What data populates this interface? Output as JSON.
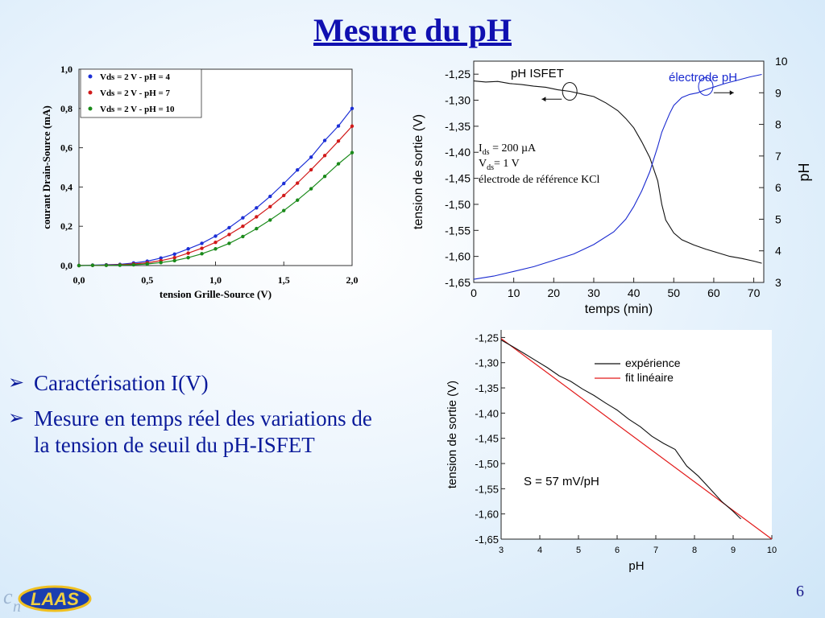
{
  "slide": {
    "title": "Mesure du pH",
    "bullets": [
      "Caractérisation I(V)",
      "Mesure en temps réel des variations de la tension de seuil du pH-ISFET"
    ],
    "page_number": "6",
    "logo_text": "LAAS"
  },
  "chart_data": [
    {
      "id": "iv",
      "type": "scatter+line",
      "title": "",
      "xlabel": "tension Grille-Source (V)",
      "ylabel": "courant Drain-Source (mA)",
      "xlim": [
        0,
        2
      ],
      "ylim": [
        0,
        1
      ],
      "xticks": [
        "0,0",
        "0,5",
        "1,0",
        "1,5",
        "2,0"
      ],
      "yticks": [
        "0,0",
        "0,2",
        "0,4",
        "0,6",
        "0,8",
        "1,0"
      ],
      "legend_position": "top-left",
      "series": [
        {
          "name": "Vds = 2 V - pH = 4",
          "color": "#1c2fd6",
          "x": [
            0.0,
            0.1,
            0.2,
            0.3,
            0.4,
            0.5,
            0.6,
            0.7,
            0.8,
            0.9,
            1.0,
            1.1,
            1.2,
            1.3,
            1.4,
            1.5,
            1.6,
            1.7,
            1.8,
            1.9,
            2.0
          ],
          "y": [
            0.0,
            0.002,
            0.004,
            0.006,
            0.013,
            0.022,
            0.038,
            0.058,
            0.085,
            0.113,
            0.15,
            0.193,
            0.243,
            0.294,
            0.352,
            0.418,
            0.487,
            0.552,
            0.637,
            0.711,
            0.8
          ]
        },
        {
          "name": "Vds = 2 V - pH = 7",
          "color": "#d11a1a",
          "x": [
            0.0,
            0.1,
            0.2,
            0.3,
            0.4,
            0.5,
            0.6,
            0.7,
            0.8,
            0.9,
            1.0,
            1.1,
            1.2,
            1.3,
            1.4,
            1.5,
            1.6,
            1.7,
            1.8,
            1.9,
            2.0
          ],
          "y": [
            0.0,
            0.001,
            0.002,
            0.004,
            0.008,
            0.014,
            0.025,
            0.04,
            0.063,
            0.088,
            0.118,
            0.158,
            0.2,
            0.248,
            0.3,
            0.357,
            0.42,
            0.488,
            0.56,
            0.634,
            0.71
          ]
        },
        {
          "name": "Vds = 2 V - pH = 10",
          "color": "#1a8a1a",
          "x": [
            0.0,
            0.1,
            0.2,
            0.3,
            0.4,
            0.5,
            0.6,
            0.7,
            0.8,
            0.9,
            1.0,
            1.1,
            1.2,
            1.3,
            1.4,
            1.5,
            1.6,
            1.7,
            1.8,
            1.9,
            2.0
          ],
          "y": [
            0.0,
            0.001,
            0.001,
            0.002,
            0.004,
            0.008,
            0.015,
            0.025,
            0.04,
            0.06,
            0.085,
            0.113,
            0.148,
            0.188,
            0.232,
            0.28,
            0.333,
            0.391,
            0.454,
            0.518,
            0.575
          ]
        }
      ]
    },
    {
      "id": "time",
      "type": "line",
      "title": "",
      "xlabel": "temps (min)",
      "ylabel": "tension de sortie (V)",
      "ylabel_right": "pH",
      "xlim": [
        0,
        72.5
      ],
      "ylim": [
        -1.65,
        -1.225
      ],
      "ylim_right": [
        3,
        10
      ],
      "xticks": [
        "0",
        "10",
        "20",
        "30",
        "40",
        "50",
        "60",
        "70"
      ],
      "yticks": [
        "-1,25",
        "-1,30",
        "-1,35",
        "-1,40",
        "-1,45",
        "-1,50",
        "-1,55",
        "-1,60",
        "-1,65"
      ],
      "yticks_right": [
        "3",
        "4",
        "5",
        "6",
        "7",
        "8",
        "9",
        "10"
      ],
      "label_isfet": "pH ISFET",
      "label_electrode": "électrode pH",
      "annotation_lines": [
        "Ids = 200 µA",
        "Vds = 1 V",
        "électrode de référence KCl"
      ],
      "annotation_ids_label": "I",
      "annotation_ids_sub": "ds",
      "annotation_ids_val": " = 200 µA",
      "annotation_vds_label": "V",
      "annotation_vds_sub": "ds",
      "annotation_vds_val": "= 1 V",
      "annotation_ref": "électrode de référence KCl",
      "series": [
        {
          "name": "pH ISFET",
          "axis": "left",
          "color": "#111111",
          "x": [
            0,
            3,
            6,
            9,
            12,
            15,
            18,
            21,
            24,
            27,
            30,
            33,
            36,
            38,
            40,
            42,
            44,
            46,
            47,
            48,
            50,
            52,
            55,
            58,
            61,
            64,
            67,
            70,
            72
          ],
          "y": [
            -1.263,
            -1.265,
            -1.264,
            -1.268,
            -1.27,
            -1.273,
            -1.275,
            -1.28,
            -1.283,
            -1.288,
            -1.293,
            -1.305,
            -1.32,
            -1.335,
            -1.353,
            -1.38,
            -1.41,
            -1.455,
            -1.5,
            -1.53,
            -1.555,
            -1.568,
            -1.578,
            -1.586,
            -1.593,
            -1.6,
            -1.604,
            -1.609,
            -1.613
          ]
        },
        {
          "name": "électrode pH",
          "axis": "right",
          "color": "#1a2ad0",
          "x": [
            0,
            5,
            10,
            15,
            20,
            25,
            30,
            35,
            38,
            40,
            42,
            44,
            45,
            46,
            47,
            48,
            49,
            50,
            52,
            54,
            56,
            58,
            60,
            63,
            66,
            69,
            72
          ],
          "y": [
            3.1,
            3.2,
            3.35,
            3.5,
            3.7,
            3.9,
            4.2,
            4.6,
            5.0,
            5.4,
            5.9,
            6.5,
            6.9,
            7.3,
            7.75,
            8.05,
            8.35,
            8.6,
            8.85,
            8.95,
            9.0,
            9.1,
            9.18,
            9.3,
            9.4,
            9.5,
            9.58
          ]
        }
      ]
    },
    {
      "id": "calib",
      "type": "line",
      "title": "",
      "xlabel": "pH",
      "ylabel": "tension de sortie (V)",
      "xlim": [
        3,
        10
      ],
      "ylim": [
        -1.65,
        -1.235
      ],
      "xticks": [
        "3",
        "4",
        "5",
        "6",
        "7",
        "8",
        "9",
        "10"
      ],
      "yticks": [
        "-1,25",
        "-1,30",
        "-1,35",
        "-1,40",
        "-1,45",
        "-1,50",
        "-1,55",
        "-1,60",
        "-1,65"
      ],
      "legend_position": "top-right",
      "annotation": "S = 57 mV/pH",
      "series": [
        {
          "name": "expérience",
          "color": "#111111",
          "x": [
            3.0,
            3.3,
            3.6,
            3.9,
            4.2,
            4.5,
            4.8,
            5.1,
            5.4,
            5.7,
            6.0,
            6.3,
            6.6,
            6.9,
            7.2,
            7.5,
            7.8,
            8.1,
            8.4,
            8.7,
            9.0,
            9.2
          ],
          "y": [
            -1.255,
            -1.268,
            -1.282,
            -1.296,
            -1.31,
            -1.326,
            -1.337,
            -1.352,
            -1.365,
            -1.38,
            -1.394,
            -1.412,
            -1.427,
            -1.446,
            -1.46,
            -1.472,
            -1.505,
            -1.525,
            -1.55,
            -1.575,
            -1.595,
            -1.61
          ]
        },
        {
          "name": "fit linéaire",
          "color": "#e21a1a",
          "x": [
            3.0,
            10.0
          ],
          "y": [
            -1.252,
            -1.65
          ]
        }
      ]
    }
  ]
}
